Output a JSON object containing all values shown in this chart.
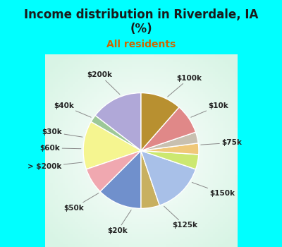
{
  "title": "Income distribution in Riverdale, IA\n(%)",
  "subtitle": "All residents",
  "title_color": "#1a1a1a",
  "subtitle_color": "#cc6600",
  "bg_top": "#00ffff",
  "labels": [
    "$100k",
    "$10k",
    "$75k",
    "$150k",
    "$125k",
    "$20k",
    "$50k",
    "> $200k",
    "$60k",
    "$30k",
    "$40k",
    "$200k"
  ],
  "values": [
    14,
    2,
    13,
    7,
    12,
    5,
    14,
    4,
    3,
    3,
    8,
    11
  ],
  "colors": [
    "#b0a8d8",
    "#9dc898",
    "#f5f590",
    "#f0a8b0",
    "#7090cc",
    "#c8b060",
    "#a8c0e8",
    "#cce870",
    "#f0c878",
    "#c8c0b0",
    "#e08888",
    "#b89030"
  ],
  "startangle": 90,
  "label_fontsize": 7.5,
  "title_fontsize": 12,
  "subtitle_fontsize": 10
}
